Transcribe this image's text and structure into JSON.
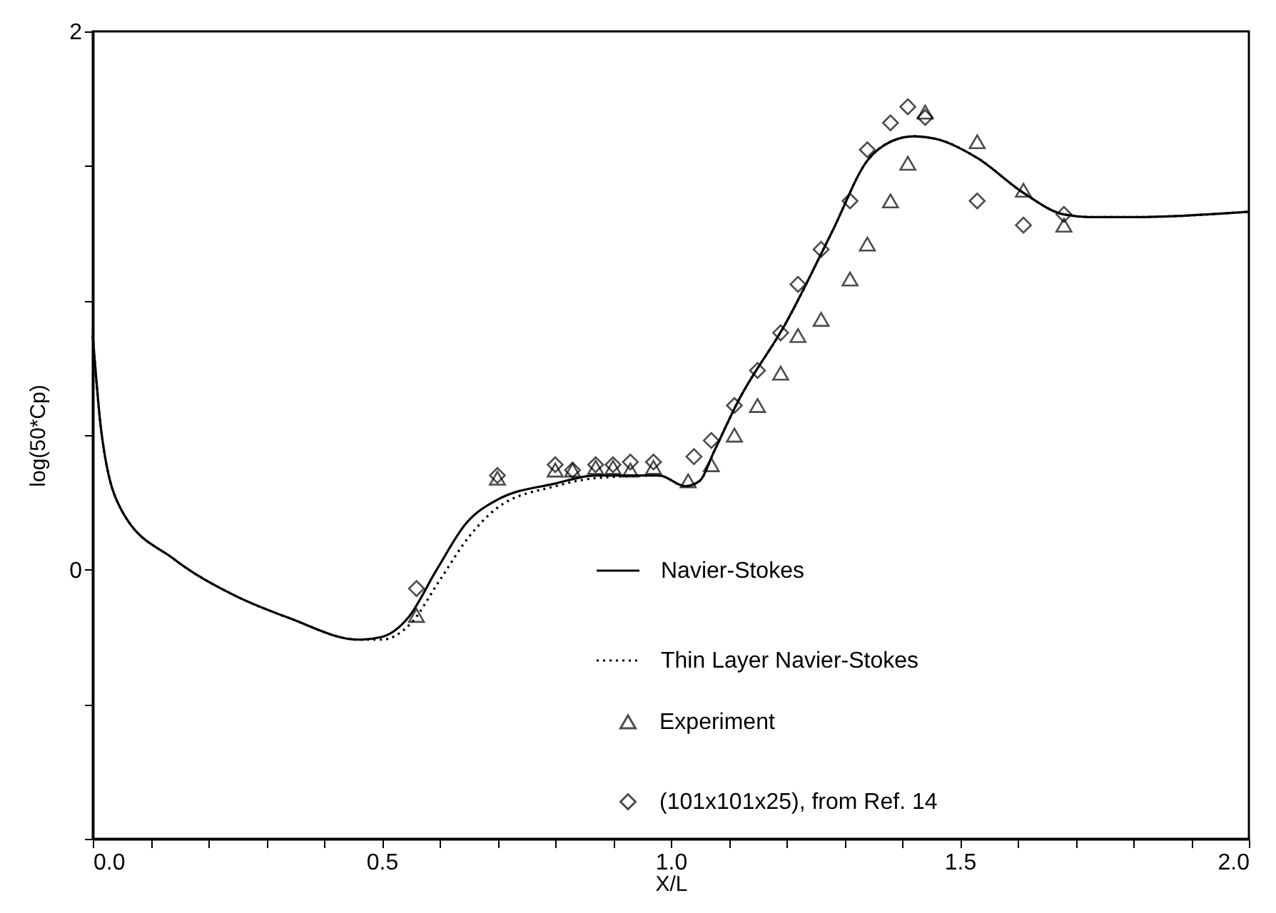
{
  "chart_data": {
    "type": "line",
    "xlabel": "X/L",
    "ylabel": "log(50*Cp)",
    "xlim": [
      0,
      2
    ],
    "ylim": [
      -1,
      2
    ],
    "xticks": [
      {
        "value": 0,
        "label": "0.0"
      },
      {
        "value": 0.1,
        "label": null
      },
      {
        "value": 0.2,
        "label": null
      },
      {
        "value": 0.3,
        "label": null
      },
      {
        "value": 0.4,
        "label": null
      },
      {
        "value": 0.5,
        "label": "0.5"
      },
      {
        "value": 0.6,
        "label": null
      },
      {
        "value": 0.7,
        "label": null
      },
      {
        "value": 0.8,
        "label": null
      },
      {
        "value": 0.9,
        "label": null
      },
      {
        "value": 1,
        "label": "1.0"
      },
      {
        "value": 1.1,
        "label": null
      },
      {
        "value": 1.2,
        "label": null
      },
      {
        "value": 1.3,
        "label": null
      },
      {
        "value": 1.4,
        "label": null
      },
      {
        "value": 1.5,
        "label": "1.5"
      },
      {
        "value": 1.6,
        "label": null
      },
      {
        "value": 1.7,
        "label": null
      },
      {
        "value": 1.8,
        "label": null
      },
      {
        "value": 1.9,
        "label": null
      },
      {
        "value": 2,
        "label": "2.0"
      }
    ],
    "yticks": [
      {
        "value": -1,
        "label": null
      },
      {
        "value": -0.5,
        "label": null
      },
      0,
      {
        "value": 0.5,
        "label": null
      },
      {
        "value": 1,
        "label": null
      },
      {
        "value": 1.5,
        "label": null
      },
      2
    ],
    "legend": "bottom right",
    "grid": false,
    "series": [
      {
        "name": "Navier-Stokes",
        "type": "line",
        "line_style": "solid",
        "color": "#000000",
        "x": [
          0,
          0.015,
          0.05,
          0.14,
          0.24,
          0.34,
          0.46,
          0.5,
          0.545,
          0.595,
          0.645,
          0.7,
          0.8,
          0.87,
          0.98,
          1.025,
          1.05,
          1.075,
          1.115,
          1.2,
          1.28,
          1.34,
          1.38,
          1.42,
          1.46,
          1.53,
          1.61,
          1.68,
          1.73,
          1.8,
          2
        ],
        "values": [
          0.87,
          0.51,
          0.22,
          0.04,
          -0.09,
          -0.18,
          -0.26,
          -0.25,
          -0.18,
          0,
          0.17,
          0.26,
          0.32,
          0.35,
          0.35,
          0.31,
          0.33,
          0.44,
          0.62,
          0.92,
          1.26,
          1.52,
          1.59,
          1.61,
          1.6,
          1.53,
          1.4,
          1.32,
          1.31,
          1.31,
          1.33
        ]
      },
      {
        "name": "Thin Layer Navier-Stokes",
        "type": "line",
        "line_style": "dotted",
        "color": "#000000",
        "x": [
          0,
          0.015,
          0.05,
          0.14,
          0.24,
          0.34,
          0.46,
          0.5,
          0.55,
          0.6,
          0.65,
          0.7,
          0.8,
          0.87,
          0.98,
          1.025,
          1.05,
          1.075,
          1.115,
          1.2,
          1.28,
          1.34,
          1.38,
          1.42,
          1.46,
          1.53,
          1.61,
          1.68,
          1.73,
          1.8,
          2
        ],
        "values": [
          0.87,
          0.51,
          0.22,
          0.04,
          -0.09,
          -0.18,
          -0.26,
          -0.26,
          -0.2,
          -0.04,
          0.12,
          0.23,
          0.31,
          0.34,
          0.35,
          0.31,
          0.33,
          0.44,
          0.62,
          0.92,
          1.26,
          1.52,
          1.59,
          1.61,
          1.6,
          1.53,
          1.4,
          1.32,
          1.31,
          1.31,
          1.33
        ]
      },
      {
        "name": "Experiment",
        "type": "scatter",
        "marker": "triangle",
        "color": "#000000",
        "x": [
          0.56,
          0.7,
          0.8,
          0.83,
          0.87,
          0.9,
          0.93,
          0.97,
          1.03,
          1.07,
          1.11,
          1.15,
          1.19,
          1.22,
          1.26,
          1.31,
          1.34,
          1.38,
          1.41,
          1.44,
          1.53,
          1.61,
          1.68
        ],
        "values": [
          -0.17,
          0.34,
          0.37,
          0.37,
          0.38,
          0.38,
          0.37,
          0.38,
          0.33,
          0.39,
          0.5,
          0.61,
          0.73,
          0.87,
          0.93,
          1.08,
          1.21,
          1.37,
          1.51,
          1.7,
          1.59,
          1.41,
          1.28
        ]
      },
      {
        "name": "(101x101x25), from Ref. 14",
        "type": "scatter",
        "marker": "diamond",
        "color": "#000000",
        "x": [
          0.56,
          0.7,
          0.8,
          0.83,
          0.87,
          0.9,
          0.93,
          0.97,
          1.04,
          1.07,
          1.11,
          1.15,
          1.19,
          1.22,
          1.26,
          1.31,
          1.34,
          1.38,
          1.41,
          1.44,
          1.53,
          1.61,
          1.68
        ],
        "values": [
          -0.07,
          0.35,
          0.39,
          0.37,
          0.39,
          0.39,
          0.4,
          0.4,
          0.42,
          0.48,
          0.61,
          0.74,
          0.88,
          1.06,
          1.19,
          1.37,
          1.56,
          1.66,
          1.72,
          1.68,
          1.37,
          1.28,
          1.32
        ]
      }
    ]
  }
}
